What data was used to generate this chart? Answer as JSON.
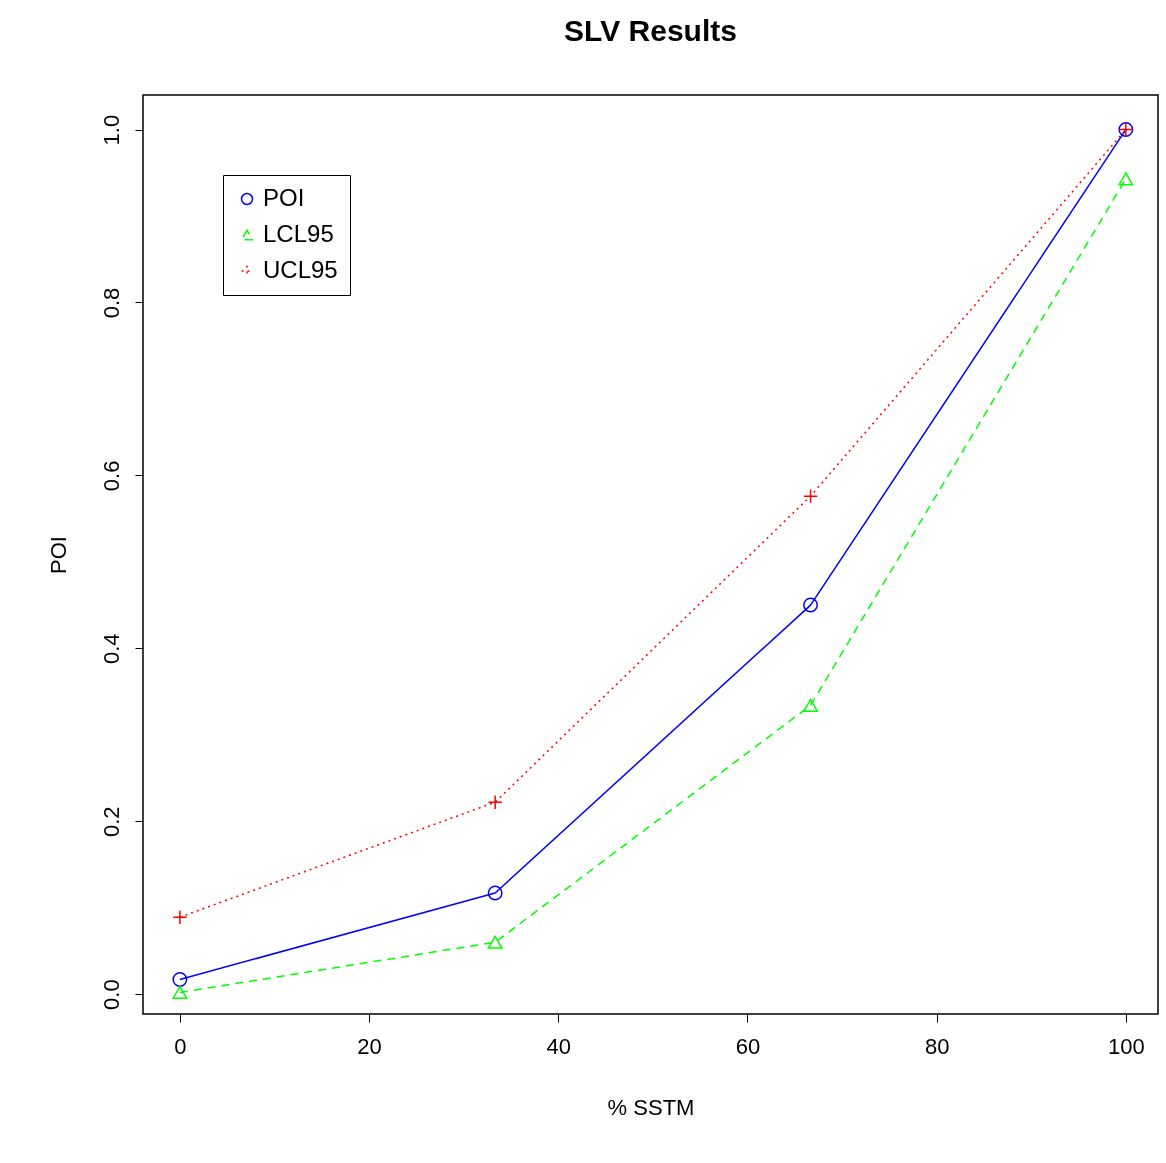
{
  "chart_data": {
    "type": "line",
    "title": "SLV Results",
    "xlabel": "% SSTM",
    "ylabel": "POI",
    "x": [
      0,
      33.33,
      66.67,
      100
    ],
    "series": [
      {
        "name": "POI",
        "color": "#0000ff",
        "values": [
          0.017,
          0.117,
          0.45,
          1.0
        ],
        "marker": "circle",
        "line_style": "solid"
      },
      {
        "name": "LCL95",
        "color": "#00ff00",
        "values": [
          0.002,
          0.06,
          0.334,
          0.943
        ],
        "marker": "triangle",
        "line_style": "dashed"
      },
      {
        "name": "UCL95",
        "color": "#ff0000",
        "values": [
          0.089,
          0.222,
          0.576,
          1.0
        ],
        "marker": "cross",
        "line_style": "dotted"
      }
    ],
    "xlim": [
      -3.9,
      103.4
    ],
    "ylim": [
      -0.023,
      1.04
    ],
    "xticks": [
      0,
      20,
      40,
      60,
      80,
      100
    ],
    "yticks": [
      {
        "value": 0,
        "label": "0.0"
      },
      {
        "value": 0.2,
        "label": "0.2"
      },
      {
        "value": 0.4,
        "label": "0.4"
      },
      {
        "value": 0.6,
        "label": "0.6"
      },
      {
        "value": 0.8,
        "label": "0.8"
      },
      {
        "value": 1,
        "label": "1.0"
      }
    ],
    "grid": false,
    "legend": "top left"
  }
}
